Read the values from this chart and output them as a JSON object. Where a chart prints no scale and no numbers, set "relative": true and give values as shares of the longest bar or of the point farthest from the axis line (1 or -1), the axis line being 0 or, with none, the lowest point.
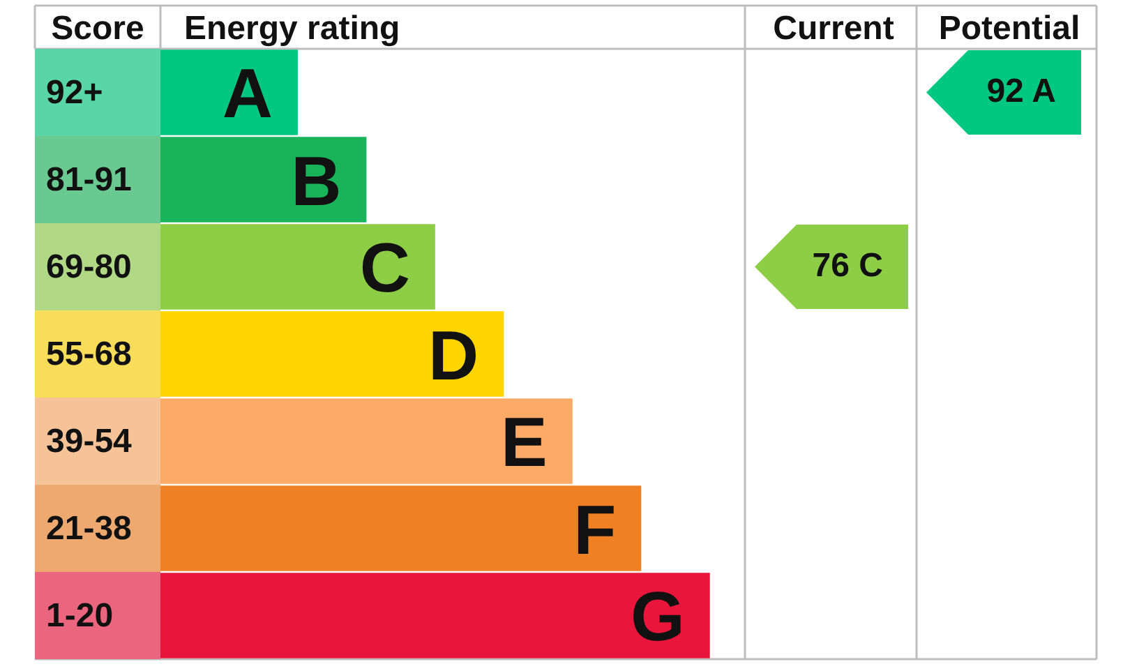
{
  "chart_data": {
    "type": "bar",
    "orientation": "horizontal",
    "relative": true,
    "xlabel": "Energy rating",
    "ylabel": "Score",
    "categories": [
      "92+",
      "81-91",
      "69-80",
      "55-68",
      "39-54",
      "21-38",
      "1-20"
    ],
    "values": [
      0.25,
      0.375,
      0.5,
      0.625,
      0.75,
      0.875,
      1
    ],
    "colors": [
      "#00c781",
      "#19b459",
      "#8dce46",
      "#ffd500",
      "#fcaa65",
      "#ef8023",
      "#e9153b"
    ],
    "annotations": [
      "Current",
      "Potential",
      "76 C",
      "92 A",
      {
        "text": "A",
        "x": 0.25,
        "y": "92+"
      },
      {
        "text": "B",
        "x": 0.375,
        "y": "81-91"
      },
      {
        "text": "C",
        "x": 0.5,
        "y": "69-80"
      },
      {
        "text": "D",
        "x": 0.625,
        "y": "55-68"
      },
      {
        "text": "E",
        "x": 0.75,
        "y": "39-54"
      },
      {
        "text": "F",
        "x": 0.875,
        "y": "21-38"
      },
      {
        "text": "G",
        "x": 1,
        "y": "1-20"
      }
    ]
  }
}
